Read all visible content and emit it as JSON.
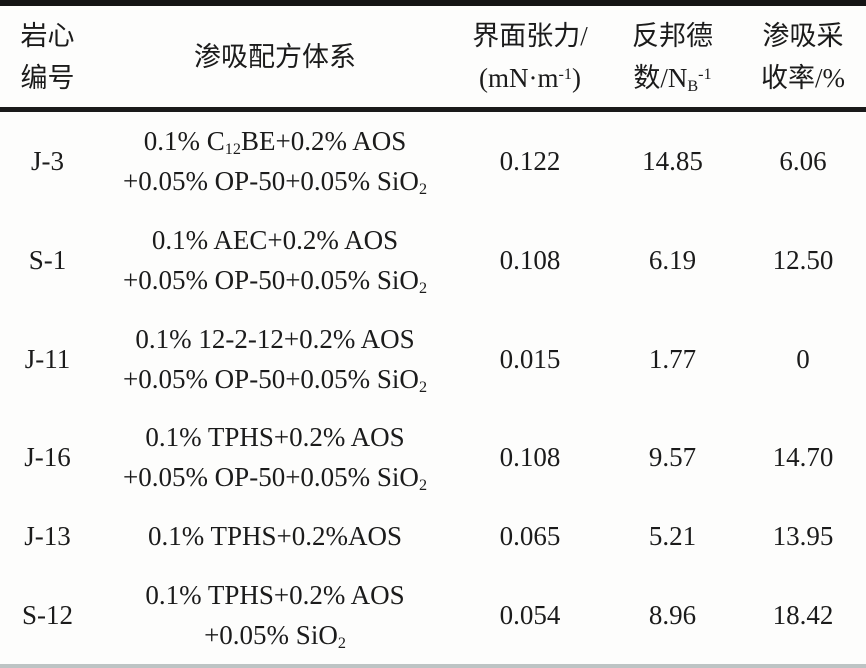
{
  "headers": {
    "core": {
      "line1": "岩心",
      "line2": "编号"
    },
    "formula": {
      "line1": "渗吸配方体系"
    },
    "ift": {
      "line1": "界面张力/",
      "line2": [
        {
          "t": "(mN·m"
        },
        {
          "t": "-1",
          "v": "sup"
        },
        {
          "t": ")"
        }
      ]
    },
    "bond": {
      "line1": "反邦德",
      "line2": [
        {
          "t": "数/N"
        },
        {
          "t": "B",
          "v": "sub"
        },
        {
          "t": "-1",
          "v": "sup"
        }
      ]
    },
    "recovery": {
      "line1": "渗吸采",
      "line2": "收率/%"
    }
  },
  "rows": [
    {
      "core_id": "J-3",
      "formula": [
        [
          {
            "t": "0.1% C"
          },
          {
            "t": "12",
            "v": "sub"
          },
          {
            "t": "BE+0.2% AOS"
          }
        ],
        [
          {
            "t": "+0.05% OP-50+0.05% SiO"
          },
          {
            "t": "2",
            "v": "sub"
          }
        ]
      ],
      "interfacial_tension": "0.122",
      "inverse_bond_number": "14.85",
      "recovery": "6.06"
    },
    {
      "core_id": "S-1",
      "formula": [
        [
          {
            "t": "0.1% AEC+0.2% AOS"
          }
        ],
        [
          {
            "t": "+0.05% OP-50+0.05% SiO"
          },
          {
            "t": "2",
            "v": "sub"
          }
        ]
      ],
      "interfacial_tension": "0.108",
      "inverse_bond_number": "6.19",
      "recovery": "12.50"
    },
    {
      "core_id": "J-11",
      "formula": [
        [
          {
            "t": "0.1% 12-2-12+0.2% AOS"
          }
        ],
        [
          {
            "t": "+0.05% OP-50+0.05% SiO"
          },
          {
            "t": "2",
            "v": "sub"
          }
        ]
      ],
      "interfacial_tension": "0.015",
      "inverse_bond_number": "1.77",
      "recovery": "0"
    },
    {
      "core_id": "J-16",
      "formula": [
        [
          {
            "t": "0.1% TPHS+0.2% AOS"
          }
        ],
        [
          {
            "t": "+0.05% OP-50+0.05% SiO"
          },
          {
            "t": "2",
            "v": "sub"
          }
        ]
      ],
      "interfacial_tension": "0.108",
      "inverse_bond_number": "9.57",
      "recovery": "14.70"
    },
    {
      "core_id": "J-13",
      "formula": [
        [
          {
            "t": "0.1% TPHS+0.2%AOS"
          }
        ]
      ],
      "interfacial_tension": "0.065",
      "inverse_bond_number": "5.21",
      "recovery": "13.95"
    },
    {
      "core_id": "S-12",
      "formula": [
        [
          {
            "t": "0.1% TPHS+0.2% AOS"
          }
        ],
        [
          {
            "t": "+0.05% SiO"
          },
          {
            "t": "2",
            "v": "sub"
          }
        ]
      ],
      "interfacial_tension": "0.054",
      "inverse_bond_number": "8.96",
      "recovery": "18.42"
    }
  ],
  "chart_data": {
    "type": "table",
    "columns": [
      "岩心编号",
      "渗吸配方体系",
      "界面张力/(mN·m⁻¹)",
      "反邦德数/N_B⁻¹",
      "渗吸采收率/%"
    ],
    "rows": [
      [
        "J-3",
        "0.1% C₁₂BE+0.2% AOS +0.05% OP-50+0.05% SiO₂",
        "0.122",
        "14.85",
        "6.06"
      ],
      [
        "S-1",
        "0.1% AEC+0.2% AOS +0.05% OP-50+0.05% SiO₂",
        "0.108",
        "6.19",
        "12.50"
      ],
      [
        "J-11",
        "0.1% 12-2-12+0.2% AOS +0.05% OP-50+0.05% SiO₂",
        "0.015",
        "1.77",
        "0"
      ],
      [
        "J-16",
        "0.1% TPHS+0.2% AOS +0.05% OP-50+0.05% SiO₂",
        "0.108",
        "9.57",
        "14.70"
      ],
      [
        "J-13",
        "0.1% TPHS+0.2%AOS",
        "0.065",
        "5.21",
        "13.95"
      ],
      [
        "S-12",
        "0.1% TPHS+0.2% AOS +0.05% SiO₂",
        "0.054",
        "8.96",
        "18.42"
      ]
    ]
  },
  "colors": {
    "text": "#1b1b1b",
    "rule_dark": "#151515",
    "rule_bottom_gray": "#bdc4c4",
    "background": "#fdfdfc"
  }
}
